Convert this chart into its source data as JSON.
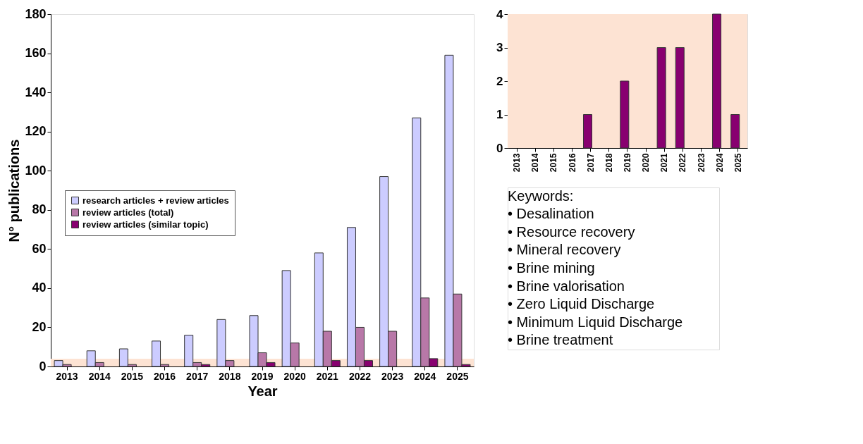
{
  "chart_data": [
    {
      "type": "bar",
      "xlabel": "Year",
      "ylabel": "N° publications",
      "categories": [
        "2013",
        "2014",
        "2015",
        "2016",
        "2017",
        "2018",
        "2019",
        "2020",
        "2021",
        "2022",
        "2023",
        "2024",
        "2025"
      ],
      "series": [
        {
          "name": "research articles + review articles",
          "color": "#ccccff",
          "values": [
            3,
            8,
            9,
            13,
            16,
            24,
            26,
            49,
            58,
            71,
            97,
            127,
            159
          ]
        },
        {
          "name": "review articles (total)",
          "color": "#b878a8",
          "values": [
            1,
            2,
            1,
            1,
            2,
            3,
            7,
            12,
            18,
            20,
            18,
            35,
            37
          ]
        },
        {
          "name": "review articles (similar topic)",
          "color": "#880070",
          "values": [
            0,
            0,
            0,
            0,
            1,
            0,
            2,
            0,
            3,
            3,
            0,
            4,
            1
          ]
        }
      ],
      "ylim": [
        0,
        180
      ],
      "yticks": [
        0,
        20,
        40,
        60,
        80,
        100,
        120,
        140,
        160,
        180
      ],
      "grid": false,
      "legend": "left",
      "bands": [
        {
          "axis": "y",
          "from": 0,
          "to": 4,
          "color": "#fde3d3"
        }
      ],
      "annotations": [
        "Keywords:",
        "•   Desalination",
        "•   Resource recovery",
        "•   Mineral recovery",
        "•   Brine mining",
        "•   Brine valorisation",
        "•   Zero Liquid Discharge",
        "•   Minimum Liquid Discharge",
        "•   Brine treatment"
      ]
    },
    {
      "type": "bar",
      "categories": [
        "2013",
        "2014",
        "2015",
        "2016",
        "2017",
        "2018",
        "2019",
        "2020",
        "2021",
        "2022",
        "2023",
        "2024",
        "2025"
      ],
      "values": [
        0,
        0,
        0,
        0,
        1,
        0,
        2,
        0,
        3,
        3,
        0,
        4,
        1
      ],
      "color": "#880070",
      "ylim": [
        0,
        4
      ],
      "yticks": [
        0,
        1,
        2,
        3,
        4
      ],
      "grid": false,
      "bands": [
        {
          "axis": "y",
          "from": 0,
          "to": 4,
          "color": "#fde3d3"
        }
      ]
    }
  ]
}
